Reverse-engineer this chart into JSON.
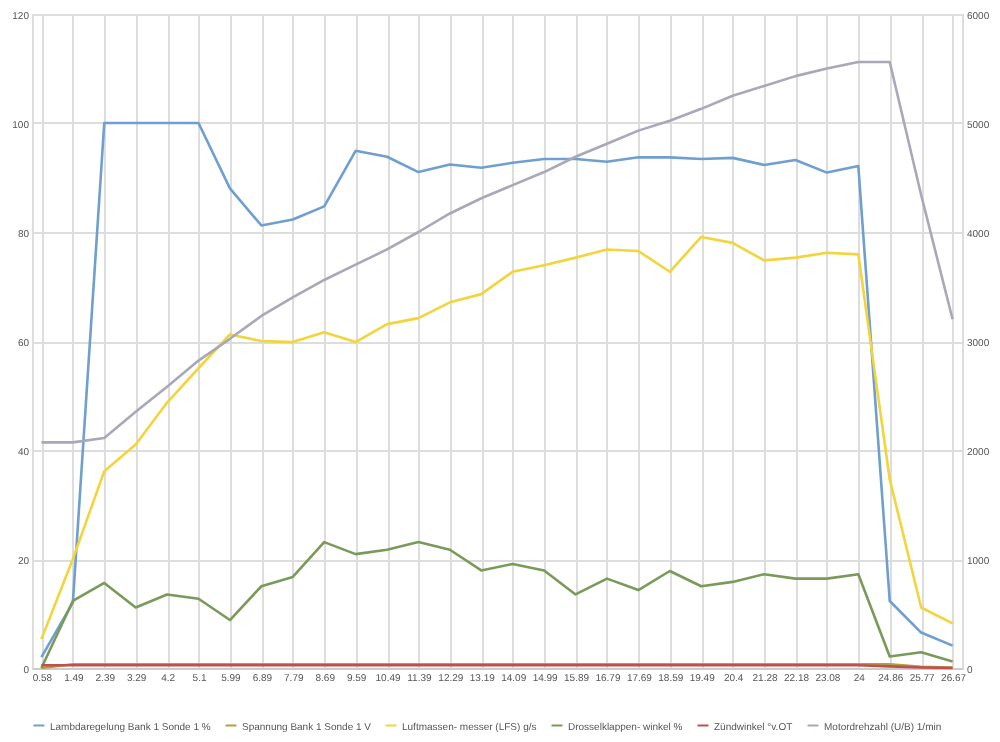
{
  "chart_data": {
    "type": "line",
    "categories": [
      "0.58",
      "1.49",
      "2.39",
      "3.29",
      "4.2",
      "5.1",
      "5.99",
      "6.89",
      "7.79",
      "8.69",
      "9.59",
      "10.49",
      "11.39",
      "12.29",
      "13.19",
      "14.09",
      "14.99",
      "15.89",
      "16.79",
      "17.69",
      "18.59",
      "19.49",
      "20.4",
      "21.28",
      "22.18",
      "23.08",
      "24",
      "24.86",
      "25.77",
      "26.67"
    ],
    "series": [
      {
        "name": "Lambdaregelung Bank 1 Sonde 1 %",
        "color": "#6f9fd0",
        "values": [
          2,
          12,
          100,
          100,
          100,
          100,
          88,
          81.2,
          82.3,
          84.7,
          94.9,
          93.8,
          91,
          92.4,
          91.8,
          92.7,
          93.4,
          93.4,
          92.9,
          93.7,
          93.7,
          93.4,
          93.6,
          92.3,
          93.2,
          90.9,
          92.1,
          12.3,
          6.5,
          4.1
        ]
      },
      {
        "name": "Spannung Bank 1 Sonde 1 V",
        "color": "#b0a040",
        "values": [
          0,
          0.7,
          0.7,
          0.7,
          0.7,
          0.7,
          0.7,
          0.7,
          0.7,
          0.7,
          0.7,
          0.7,
          0.7,
          0.7,
          0.7,
          0.7,
          0.7,
          0.7,
          0.7,
          0.7,
          0.7,
          0.7,
          0.7,
          0.7,
          0.7,
          0.7,
          0.7,
          0.7,
          0.2,
          0.1
        ]
      },
      {
        "name": "Luftmassen- messer (LFS) g/s",
        "color": "#f2d43c",
        "values": [
          5.3,
          20,
          36.1,
          41,
          48.7,
          55,
          61.2,
          60,
          59.8,
          61.6,
          59.8,
          63.1,
          64.2,
          67.1,
          68.6,
          72.7,
          73.9,
          75.3,
          76.8,
          76.5,
          72.7,
          79.1,
          78,
          74.8,
          75.3,
          76.2,
          75.9,
          34.6,
          11.1,
          8.2
        ]
      },
      {
        "name": "Drosselklappen- winkel %",
        "color": "#7a9a5a",
        "values": [
          0,
          12.3,
          15.6,
          11.1,
          13.5,
          12.7,
          8.8,
          15,
          16.7,
          23.1,
          20.9,
          21.7,
          23.1,
          21.7,
          17.9,
          19.1,
          17.9,
          13.5,
          16.4,
          14.3,
          17.8,
          15,
          15.8,
          17.2,
          16.4,
          16.4,
          17.2,
          2.1,
          2.9,
          1.2
        ]
      },
      {
        "name": "Zündwinkel °v.OT",
        "color": "#c0504d",
        "values": [
          0.5,
          0.5,
          0.5,
          0.5,
          0.5,
          0.5,
          0.5,
          0.5,
          0.5,
          0.5,
          0.5,
          0.5,
          0.5,
          0.5,
          0.5,
          0.5,
          0.5,
          0.5,
          0.5,
          0.5,
          0.5,
          0.5,
          0.5,
          0.5,
          0.5,
          0.5,
          0.5,
          0.3,
          0.1,
          0
        ]
      },
      {
        "name": "Motordrehzahl (U/B) 1/min",
        "color": "#a8a8b8",
        "axis": "y2",
        "values": [
          2070,
          2070,
          2110,
          2350,
          2580,
          2820,
          3020,
          3230,
          3400,
          3560,
          3700,
          3840,
          4000,
          4170,
          4310,
          4430,
          4550,
          4690,
          4810,
          4930,
          5020,
          5130,
          5250,
          5340,
          5430,
          5500,
          5560,
          5560,
          4340,
          3200
        ]
      }
    ],
    "ylim": [
      0,
      120
    ],
    "yticks": [
      0,
      20,
      40,
      60,
      80,
      100,
      120
    ],
    "y2lim": [
      0,
      6000
    ],
    "y2ticks": [
      0,
      1000,
      2000,
      3000,
      4000,
      5000,
      6000
    ],
    "grid": true,
    "legend": "bottom"
  }
}
